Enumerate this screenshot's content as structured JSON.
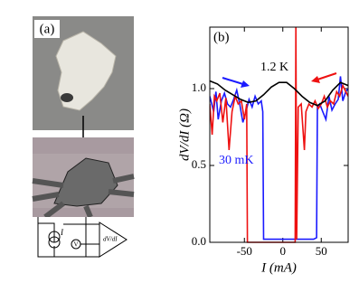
{
  "panel_a": {
    "label": "(a)",
    "circuit_labels": [
      "I",
      "V",
      "dV/dI"
    ]
  },
  "chart_data": {
    "type": "line",
    "panel_label": "(b)",
    "x_label": "I (mA)",
    "y_label": "dV/dI (Ω)",
    "xlim": [
      -95,
      85
    ],
    "ylim": [
      0,
      1.4
    ],
    "xticks": [
      -50,
      0,
      50
    ],
    "yticks": [
      {
        "value": 0,
        "label": "0.0"
      },
      {
        "value": 0.5,
        "label": "0.5"
      },
      {
        "value": 1,
        "label": "1.0"
      }
    ],
    "annotations": [
      "1.2 K",
      "30 mK"
    ],
    "series": [
      {
        "color": "#1a1aff",
        "x": [
          -95,
          -90,
          -87,
          -84,
          -80,
          -76,
          -72,
          -68,
          -64,
          -60,
          -56,
          -52,
          -48,
          -44,
          -40,
          -36,
          -32,
          -28,
          -26,
          -25,
          -10,
          10,
          30,
          40,
          44,
          45,
          48,
          52,
          56,
          60,
          64,
          68,
          72,
          75,
          78,
          82,
          85
        ],
        "values": [
          0.95,
          0.85,
          0.98,
          0.8,
          0.92,
          0.97,
          0.9,
          0.88,
          0.93,
          0.99,
          0.9,
          0.78,
          0.85,
          0.93,
          0.88,
          0.95,
          0.9,
          0.92,
          0.85,
          0.02,
          0.02,
          0.02,
          0.02,
          0.02,
          0.03,
          0.88,
          0.9,
          0.85,
          0.8,
          0.95,
          0.86,
          0.9,
          0.93,
          1.08,
          0.92,
          0.98,
          1.0
        ]
      },
      {
        "color": "#ee1111",
        "x": [
          -95,
          -92,
          -89,
          -86,
          -82,
          -78,
          -74,
          -70,
          -66,
          -62,
          -58,
          -54,
          -50,
          -47,
          -46,
          -30,
          -10,
          10,
          16,
          17,
          18,
          20,
          24,
          28,
          30,
          34,
          38,
          42,
          46,
          50,
          54,
          58,
          62,
          66,
          70,
          74,
          78,
          82,
          85
        ],
        "values": [
          0.9,
          0.7,
          0.95,
          0.92,
          0.97,
          0.78,
          0.94,
          0.6,
          0.85,
          0.95,
          0.9,
          0.92,
          0.8,
          0.9,
          0.0,
          0.0,
          0.0,
          0.0,
          0.0,
          1.4,
          0.02,
          0.88,
          0.9,
          0.6,
          0.85,
          0.9,
          0.88,
          0.92,
          0.87,
          0.9,
          0.95,
          0.88,
          0.92,
          0.9,
          0.98,
          0.95,
          1.02,
          0.98,
          0.95
        ]
      },
      {
        "color": "#000000",
        "x": [
          -95,
          -85,
          -75,
          -65,
          -55,
          -45,
          -35,
          -25,
          -15,
          -5,
          5,
          15,
          25,
          35,
          45,
          55,
          65,
          75,
          85
        ],
        "values": [
          1.05,
          1.03,
          0.99,
          0.96,
          0.93,
          0.91,
          0.92,
          0.96,
          1.01,
          1.04,
          1.04,
          1.0,
          0.95,
          0.91,
          0.89,
          0.92,
          0.99,
          1.04,
          1.02
        ]
      }
    ]
  }
}
